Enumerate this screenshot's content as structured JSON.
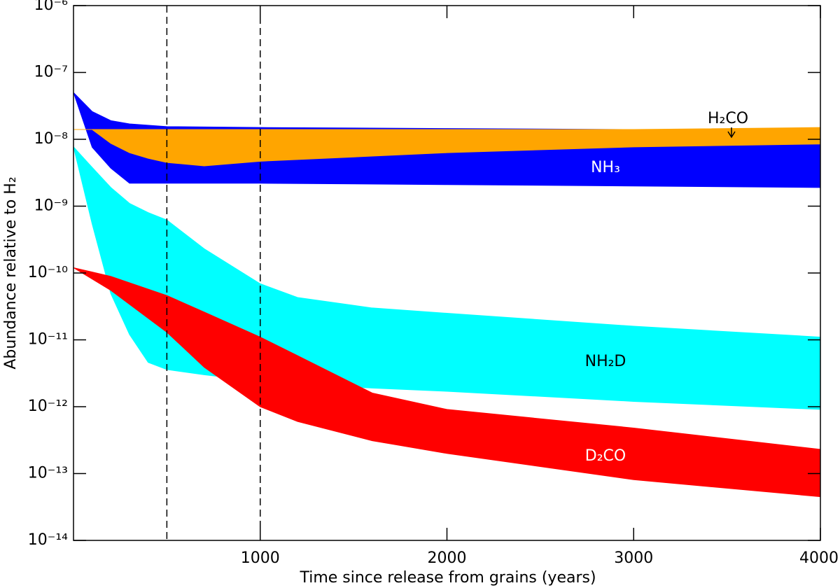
{
  "chart_data": {
    "type": "band",
    "xlabel": "Time since release from grains (years)",
    "ylabel": "Abundance relative to H₂",
    "xlim": [
      0,
      4000
    ],
    "xticks": [
      1000,
      2000,
      3000,
      4000
    ],
    "ylim": [
      1e-14,
      1e-06
    ],
    "log_y": true,
    "yticks": [
      {
        "value": 1e-14,
        "label": "10⁻¹⁴"
      },
      {
        "value": 1e-13,
        "label": "10⁻¹³"
      },
      {
        "value": 1e-12,
        "label": "10⁻¹²"
      },
      {
        "value": 1e-11,
        "label": "10⁻¹¹"
      },
      {
        "value": 1e-10,
        "label": "10⁻¹⁰"
      },
      {
        "value": 1e-09,
        "label": "10⁻⁹"
      },
      {
        "value": 1e-08,
        "label": "10⁻⁸"
      },
      {
        "value": 1e-07,
        "label": "10⁻⁷"
      },
      {
        "value": 1e-06,
        "label": "10⁻⁶"
      }
    ],
    "vlines": [
      500,
      1000
    ],
    "series": [
      {
        "name": "NH₃",
        "color": "#0000ff",
        "x": [
          0,
          100,
          200,
          300,
          500,
          1000,
          2000,
          3000,
          4000
        ],
        "upper": [
          5e-08,
          2.6e-08,
          1.9e-08,
          1.7e-08,
          1.55e-08,
          1.5e-08,
          1.45e-08,
          1.4e-08,
          1.35e-08
        ],
        "lower": [
          5e-08,
          7.6e-09,
          3.7e-09,
          2.2e-09,
          2.2e-09,
          2.2e-09,
          2.1e-09,
          2e-09,
          1.9e-09
        ]
      },
      {
        "name": "H₂CO",
        "color": "#ffa500",
        "x": [
          0,
          100,
          200,
          300,
          400,
          500,
          700,
          1000,
          1600,
          2000,
          3000,
          4000
        ],
        "upper": [
          1.4e-08,
          1.4e-08,
          1.4e-08,
          1.4e-08,
          1.4e-08,
          1.4e-08,
          1.4e-08,
          1.4e-08,
          1.4e-08,
          1.4e-08,
          1.4e-08,
          1.5e-08
        ],
        "lower": [
          1.4e-08,
          1.4e-08,
          8.7e-09,
          6.3e-09,
          5.2e-09,
          4.5e-09,
          4e-09,
          4.7e-09,
          5.6e-09,
          6.3e-09,
          7.7e-09,
          8.5e-09
        ]
      },
      {
        "name": "NH₂D",
        "color": "#00ffff",
        "x": [
          0,
          100,
          200,
          300,
          400,
          500,
          700,
          1000,
          1200,
          1600,
          2000,
          3000,
          4000
        ],
        "upper": [
          7.7e-09,
          3.8e-09,
          1.9e-09,
          1.1e-09,
          8e-10,
          6.2e-10,
          2.3e-10,
          6.9e-11,
          4.3e-11,
          3e-11,
          2.5e-11,
          1.6e-11,
          1.1e-11
        ],
        "lower": [
          7.7e-09,
          5.4e-10,
          4.9e-11,
          1.2e-11,
          4.6e-12,
          3.6e-12,
          3e-12,
          2.4e-12,
          2.2e-12,
          1.9e-12,
          1.7e-12,
          1.2e-12,
          9.1e-13
        ]
      },
      {
        "name": "D₂CO",
        "color": "#ff0000",
        "x": [
          0,
          200,
          500,
          700,
          1000,
          1200,
          1600,
          2000,
          3000,
          4000
        ],
        "upper": [
          1.2e-10,
          8.9e-11,
          4.6e-11,
          2.6e-11,
          1.1e-11,
          5.8e-12,
          1.6e-12,
          9.1e-13,
          4.8e-13,
          2.3e-13
        ],
        "lower": [
          1.2e-10,
          5.5e-11,
          1.3e-11,
          3.9e-12,
          1e-12,
          6e-13,
          3.1e-13,
          2e-13,
          8.1e-14,
          4.5e-14
        ]
      }
    ]
  }
}
